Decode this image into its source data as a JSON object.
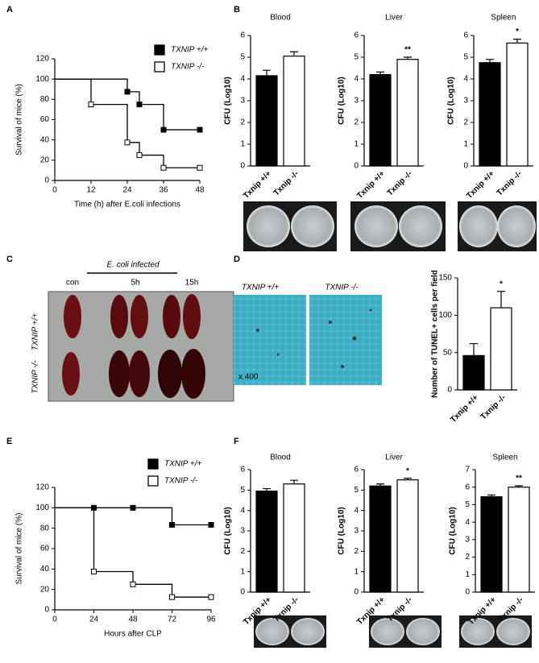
{
  "panel_labels": [
    "A",
    "B",
    "C",
    "D",
    "E",
    "F"
  ],
  "photo_c": {
    "label_infected": "E. coli infected",
    "columns": [
      "con",
      "5h",
      "15h"
    ],
    "rows": [
      "TXNIP +/+",
      "TXNIP -/-"
    ]
  },
  "photo_d": {
    "columns": [
      "TXNIP +/+",
      "TXNIP -/-"
    ],
    "magnification": "x 400"
  },
  "chart_data": [
    {
      "type": "step",
      "xlabel": "Time (h) after E.coli infections",
      "ylabel": "Survival of mice (%)",
      "xlim": [
        0,
        48
      ],
      "xticks": [
        0,
        12,
        24,
        36,
        48
      ],
      "ylim": [
        0,
        120
      ],
      "yticks": [
        0,
        20,
        40,
        60,
        80,
        100,
        120
      ],
      "series": [
        {
          "name": "TXNIP +/+",
          "color": "#000000",
          "marker_fill": "#000000",
          "x": [
            0,
            24,
            28,
            36,
            48
          ],
          "values": [
            100,
            87.5,
            75,
            50,
            50
          ]
        },
        {
          "name": "TXNIP -/-",
          "color": "#000000",
          "marker_fill": "#ffffff",
          "x": [
            0,
            12,
            24,
            28,
            36,
            48
          ],
          "values": [
            100,
            75,
            37.5,
            25,
            12.5,
            12.5
          ]
        }
      ]
    },
    {
      "type": "bar",
      "title": "Blood",
      "ylabel": "CFU (Log10)",
      "categories": [
        "Txnip +/+",
        "Txnip -/-"
      ],
      "colors": [
        "#000000",
        "#ffffff"
      ],
      "values": [
        4.15,
        5.05
      ],
      "errors": [
        0.25,
        0.2
      ],
      "ylim": [
        0,
        6
      ],
      "yticks": [
        0,
        1,
        2,
        3,
        4,
        5,
        6
      ]
    },
    {
      "type": "bar",
      "title": "Liver",
      "ylabel": "CFU (Log10)",
      "categories": [
        "Txnip +/+",
        "Txnip -/-"
      ],
      "colors": [
        "#000000",
        "#ffffff"
      ],
      "values": [
        4.2,
        4.9
      ],
      "errors": [
        0.12,
        0.1
      ],
      "annotation": "**",
      "ylim": [
        0,
        6
      ],
      "yticks": [
        0,
        1,
        2,
        3,
        4,
        5,
        6
      ]
    },
    {
      "type": "bar",
      "title": "Spleen",
      "ylabel": "CFU (Log10)",
      "categories": [
        "Txnip +/+",
        "Txnip -/-"
      ],
      "colors": [
        "#000000",
        "#ffffff"
      ],
      "values": [
        4.75,
        5.65
      ],
      "errors": [
        0.15,
        0.18
      ],
      "annotation": "*",
      "ylim": [
        0,
        6
      ],
      "yticks": [
        0,
        1,
        2,
        3,
        4,
        5,
        6
      ]
    },
    {
      "type": "bar",
      "ylabel": "Number of TUNEL+ cells per field",
      "categories": [
        "Txnip +/+",
        "Txnip -/-"
      ],
      "colors": [
        "#000000",
        "#ffffff"
      ],
      "values": [
        46,
        110
      ],
      "errors": [
        16,
        22
      ],
      "annotation": "*",
      "ylim": [
        0,
        150
      ],
      "yticks": [
        0,
        50,
        100,
        150
      ]
    },
    {
      "type": "step",
      "xlabel": "Hours after CLP",
      "ylabel": "Survival of mice (%)",
      "xlim": [
        0,
        96
      ],
      "xticks": [
        0,
        24,
        48,
        72,
        96
      ],
      "ylim": [
        0,
        120
      ],
      "yticks": [
        0,
        20,
        40,
        60,
        80,
        100,
        120
      ],
      "series": [
        {
          "name": "TXNIP +/+",
          "color": "#000000",
          "marker_fill": "#000000",
          "x": [
            0,
            24,
            48,
            72,
            96
          ],
          "values": [
            100,
            100,
            100,
            83.3,
            83.3
          ]
        },
        {
          "name": "TXNIP -/-",
          "color": "#000000",
          "marker_fill": "#ffffff",
          "x": [
            0,
            24,
            48,
            72,
            96
          ],
          "values": [
            100,
            37.5,
            25,
            12.5,
            12.5
          ]
        }
      ]
    },
    {
      "type": "bar",
      "title": "Blood",
      "ylabel": "CFU (Log10)",
      "categories": [
        "Txnip +/+",
        "Txnip -/-"
      ],
      "colors": [
        "#000000",
        "#ffffff"
      ],
      "values": [
        4.95,
        5.3
      ],
      "errors": [
        0.12,
        0.18
      ],
      "ylim": [
        0,
        6
      ],
      "yticks": [
        0,
        1,
        2,
        3,
        4,
        5,
        6
      ]
    },
    {
      "type": "bar",
      "title": "Liver",
      "ylabel": "CFU (Log10)",
      "categories": [
        "Txnip +/+",
        "Txnip -/-"
      ],
      "colors": [
        "#000000",
        "#ffffff"
      ],
      "values": [
        5.2,
        5.5
      ],
      "errors": [
        0.1,
        0.08
      ],
      "annotation": "*",
      "ylim": [
        0,
        6
      ],
      "yticks": [
        0,
        1,
        2,
        3,
        4,
        5,
        6
      ]
    },
    {
      "type": "bar",
      "title": "Spleen",
      "ylabel": "CFU (Log10)",
      "categories": [
        "Txnip +/+",
        "Txnip -/-"
      ],
      "colors": [
        "#000000",
        "#ffffff"
      ],
      "values": [
        5.45,
        6.0
      ],
      "errors": [
        0.1,
        0.08
      ],
      "annotation": "**",
      "ylim": [
        0,
        7
      ],
      "yticks": [
        0,
        1,
        2,
        3,
        4,
        5,
        6,
        7
      ]
    }
  ]
}
